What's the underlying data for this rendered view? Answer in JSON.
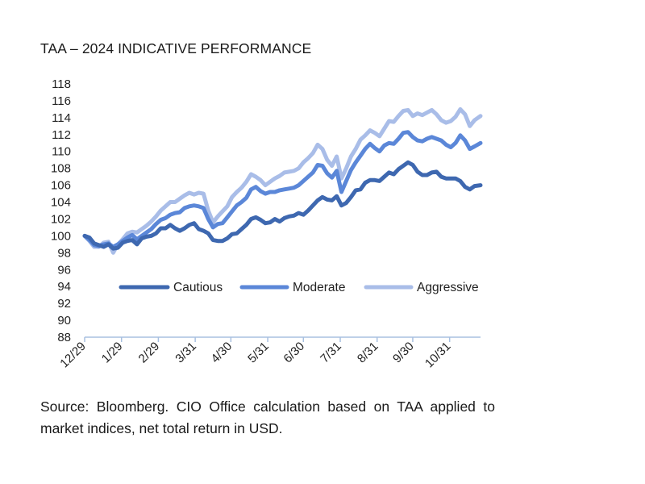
{
  "title": "TAA – 2024 INDICATIVE PERFORMANCE",
  "source": "Source: Bloomberg. CIO Office calculation based on TAA applied to market indices, net total return in USD.",
  "chart_data": {
    "type": "line",
    "title": "TAA – 2024 INDICATIVE PERFORMANCE",
    "xlabel": "",
    "ylabel": "",
    "ylim": [
      88,
      118
    ],
    "yticks": [
      88,
      90,
      92,
      94,
      96,
      98,
      100,
      102,
      104,
      106,
      108,
      110,
      112,
      114,
      116,
      118
    ],
    "xlim": [
      0,
      333
    ],
    "xtick_labels": [
      "12/29",
      "1/29",
      "2/29",
      "3/31",
      "4/30",
      "5/31",
      "6/30",
      "7/31",
      "8/31",
      "9/30",
      "10/31"
    ],
    "xtick_positions": [
      0,
      31,
      62,
      93,
      123,
      154,
      184,
      215,
      246,
      276,
      307
    ],
    "legend_position": "center",
    "series": [
      {
        "name": "Cautious",
        "color": "#3e68b0",
        "x": [
          0,
          4,
          8,
          12,
          16,
          20,
          24,
          28,
          32,
          36,
          40,
          44,
          48,
          52,
          56,
          60,
          64,
          68,
          72,
          76,
          80,
          84,
          88,
          92,
          96,
          100,
          104,
          108,
          112,
          116,
          120,
          124,
          128,
          132,
          136,
          140,
          144,
          148,
          152,
          156,
          160,
          164,
          168,
          172,
          176,
          180,
          184,
          188,
          192,
          196,
          200,
          204,
          208,
          212,
          216,
          220,
          224,
          228,
          232,
          236,
          240,
          244,
          248,
          252,
          256,
          260,
          264,
          268,
          272,
          276,
          280,
          284,
          288,
          292,
          296,
          300,
          304,
          308,
          312,
          316,
          320,
          324,
          328,
          333
        ],
        "values": [
          100.0,
          99.8,
          99.1,
          98.9,
          98.7,
          99.0,
          98.5,
          98.6,
          99.2,
          99.4,
          99.5,
          99.0,
          99.7,
          99.9,
          100.0,
          100.3,
          100.9,
          100.9,
          101.3,
          100.9,
          100.6,
          100.9,
          101.3,
          101.5,
          100.8,
          100.6,
          100.3,
          99.5,
          99.4,
          99.4,
          99.7,
          100.2,
          100.3,
          100.8,
          101.3,
          102.0,
          102.2,
          101.9,
          101.5,
          101.6,
          102.0,
          101.7,
          102.1,
          102.3,
          102.4,
          102.7,
          102.5,
          103.0,
          103.6,
          104.2,
          104.6,
          104.3,
          104.2,
          104.7,
          103.6,
          103.9,
          104.6,
          105.4,
          105.5,
          106.3,
          106.6,
          106.6,
          106.5,
          107.0,
          107.5,
          107.3,
          107.9,
          108.3,
          108.7,
          108.4,
          107.6,
          107.2,
          107.2,
          107.5,
          107.6,
          107.0,
          106.8,
          106.8,
          106.8,
          106.5,
          105.8,
          105.5,
          105.9,
          106.0
        ]
      },
      {
        "name": "Moderate",
        "color": "#5b87d8",
        "x": [
          0,
          4,
          8,
          12,
          16,
          20,
          24,
          28,
          32,
          36,
          40,
          44,
          48,
          52,
          56,
          60,
          64,
          68,
          72,
          76,
          80,
          84,
          88,
          92,
          96,
          100,
          104,
          108,
          112,
          116,
          120,
          124,
          128,
          132,
          136,
          140,
          144,
          148,
          152,
          156,
          160,
          164,
          168,
          172,
          176,
          180,
          184,
          188,
          192,
          196,
          200,
          204,
          208,
          212,
          216,
          220,
          224,
          228,
          232,
          236,
          240,
          244,
          248,
          252,
          256,
          260,
          264,
          268,
          272,
          276,
          280,
          284,
          288,
          292,
          296,
          300,
          304,
          308,
          312,
          316,
          320,
          324,
          328,
          333
        ],
        "values": [
          100.0,
          99.5,
          98.9,
          98.8,
          99.0,
          99.1,
          98.7,
          99.0,
          99.4,
          99.8,
          100.1,
          99.6,
          100.0,
          100.4,
          100.8,
          101.4,
          101.9,
          102.1,
          102.5,
          102.7,
          102.8,
          103.3,
          103.5,
          103.6,
          103.5,
          103.3,
          102.0,
          101.0,
          101.4,
          101.5,
          102.2,
          102.9,
          103.6,
          104.0,
          104.5,
          105.5,
          105.8,
          105.3,
          105.0,
          105.2,
          105.2,
          105.4,
          105.5,
          105.6,
          105.7,
          106.0,
          106.5,
          107.0,
          107.5,
          108.4,
          108.3,
          107.4,
          106.9,
          107.7,
          105.2,
          106.5,
          107.8,
          108.7,
          109.5,
          110.3,
          110.9,
          110.4,
          110.0,
          110.7,
          111.0,
          110.9,
          111.5,
          112.2,
          112.3,
          111.7,
          111.3,
          111.2,
          111.5,
          111.7,
          111.5,
          111.3,
          110.8,
          110.5,
          111.0,
          111.9,
          111.3,
          110.3,
          110.6,
          111.0
        ]
      },
      {
        "name": "Aggressive",
        "color": "#a9bde8",
        "x": [
          0,
          4,
          8,
          12,
          16,
          20,
          24,
          28,
          32,
          36,
          40,
          44,
          48,
          52,
          56,
          60,
          64,
          68,
          72,
          76,
          80,
          84,
          88,
          92,
          96,
          100,
          104,
          108,
          112,
          116,
          120,
          124,
          128,
          132,
          136,
          140,
          144,
          148,
          152,
          156,
          160,
          164,
          168,
          172,
          176,
          180,
          184,
          188,
          192,
          196,
          200,
          204,
          208,
          212,
          216,
          220,
          224,
          228,
          232,
          236,
          240,
          244,
          248,
          252,
          256,
          260,
          264,
          268,
          272,
          276,
          280,
          284,
          288,
          292,
          296,
          300,
          304,
          308,
          312,
          316,
          320,
          324,
          328,
          333
        ],
        "values": [
          100.0,
          99.4,
          98.7,
          98.7,
          99.2,
          99.3,
          98.0,
          99.0,
          99.6,
          100.3,
          100.5,
          100.4,
          100.8,
          101.2,
          101.7,
          102.3,
          103.0,
          103.5,
          104.0,
          104.0,
          104.4,
          104.8,
          105.1,
          104.9,
          105.1,
          105.0,
          103.0,
          101.6,
          102.3,
          102.9,
          103.5,
          104.6,
          105.2,
          105.7,
          106.4,
          107.3,
          107.0,
          106.6,
          106.0,
          106.4,
          106.8,
          107.1,
          107.5,
          107.6,
          107.7,
          108.0,
          108.7,
          109.2,
          109.8,
          110.8,
          110.3,
          109.0,
          108.3,
          109.4,
          106.8,
          108.0,
          109.4,
          110.3,
          111.4,
          111.9,
          112.5,
          112.2,
          111.8,
          112.7,
          113.6,
          113.5,
          114.2,
          114.8,
          114.9,
          114.2,
          114.5,
          114.3,
          114.6,
          114.9,
          114.4,
          113.7,
          113.4,
          113.6,
          114.1,
          115.0,
          114.4,
          113.0,
          113.7,
          114.2
        ]
      }
    ]
  }
}
